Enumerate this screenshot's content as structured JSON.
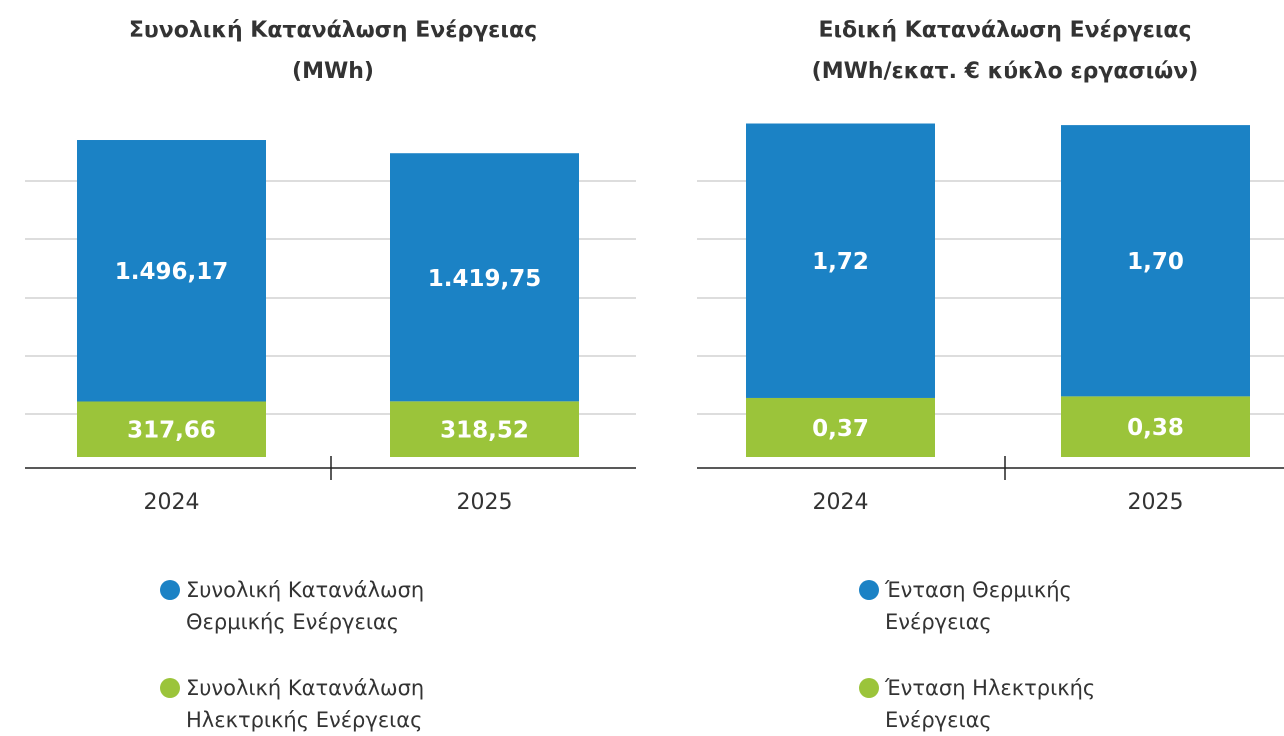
{
  "chart_data": [
    {
      "type": "stacked-bar",
      "title": "Συνολική Κατανάλωση Ενέργειας",
      "subtitle": "(MWh)",
      "categories": [
        "2024",
        "2025"
      ],
      "series": [
        {
          "name": "Συνολική Κατανάλωση Θερμικής Ενέργειας",
          "color": "#1b82c5",
          "values": [
            1496.17,
            1419.75
          ],
          "value_labels": [
            "1.496,17",
            "1.419,75"
          ]
        },
        {
          "name": "Συνολική Κατανάλωση Ηλεκτρικής Ενέργειας",
          "color": "#9bc43a",
          "values": [
            317.66,
            318.52
          ],
          "value_labels": [
            "317,66",
            "318,52"
          ]
        }
      ],
      "ylim": [
        0,
        2100
      ],
      "grid": true
    },
    {
      "type": "stacked-bar",
      "title": "Ειδική Κατανάλωση Ενέργειας",
      "subtitle": "(MWh/εκατ. € κύκλο εργασιών)",
      "categories": [
        "2024",
        "2025"
      ],
      "series": [
        {
          "name": "Ένταση Θερμικής Ενέργειας",
          "color": "#1b82c5",
          "values": [
            1.72,
            1.7
          ],
          "value_labels": [
            "1,72",
            "1,70"
          ]
        },
        {
          "name": "Ένταση Ηλεκτρικής Ενέργειας",
          "color": "#9bc43a",
          "values": [
            0.37,
            0.38
          ],
          "value_labels": [
            "0,37",
            "0,38"
          ]
        }
      ],
      "ylim": [
        0,
        2.3
      ],
      "grid": true
    }
  ]
}
